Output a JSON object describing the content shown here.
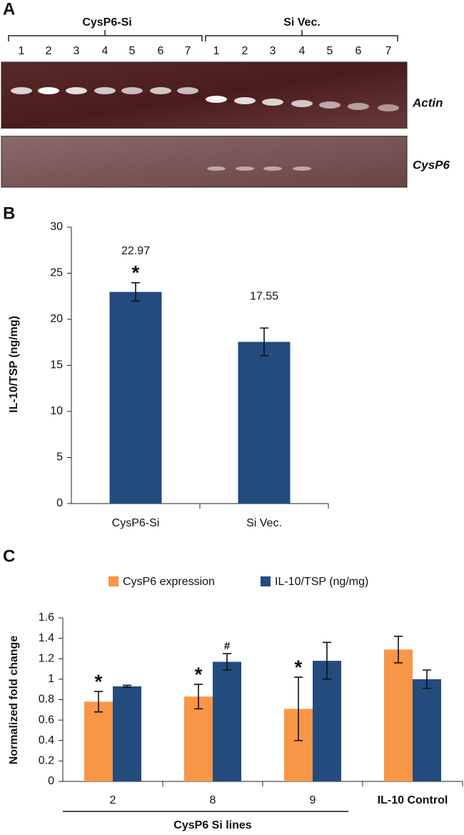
{
  "gel": {
    "panel": "A",
    "groups": [
      "CysP6-Si",
      "Si Vec."
    ],
    "lanes": [
      [
        "1",
        "2",
        "3",
        "4",
        "5",
        "6",
        "7"
      ],
      [
        "1",
        "2",
        "3",
        "4",
        "5",
        "6",
        "7"
      ]
    ],
    "genes": [
      "Actin",
      "CysP6"
    ]
  },
  "chart_data": [
    {
      "type": "bar",
      "panel": "B",
      "ylabel": "IL-10/TSP (ng/mg)",
      "categories": [
        "CysP6-Si",
        "Si Vec."
      ],
      "values": [
        22.97,
        17.55
      ],
      "errors": [
        1.0,
        1.5
      ],
      "markers": [
        "*",
        null
      ],
      "color": "#234b7e",
      "ylim": [
        0,
        30
      ],
      "yticks": [
        0,
        5,
        10,
        15,
        20,
        25,
        30
      ]
    },
    {
      "type": "grouped-bar",
      "panel": "C",
      "ylabel": "Normalized fold change",
      "xlabel": "CysP6 Si lines",
      "categories": [
        "2",
        "8",
        "9",
        "IL-10 Control"
      ],
      "legend": "top",
      "ylim": [
        0,
        1.6
      ],
      "yticks": [
        0,
        0.2,
        0.4,
        0.6,
        0.8,
        1,
        1.2,
        1.4,
        1.6
      ],
      "series": [
        {
          "name": "CysP6 expression",
          "color": "#f79646",
          "values": [
            0.78,
            0.83,
            0.71,
            1.29
          ],
          "errors": [
            0.1,
            0.12,
            0.31,
            0.13
          ],
          "markers": [
            "*",
            "*",
            "*",
            null
          ]
        },
        {
          "name": "IL-10/TSP (ng/mg)",
          "color": "#234b7e",
          "values": [
            0.93,
            1.17,
            1.18,
            1.0
          ],
          "errors": [
            0.01,
            0.08,
            0.18,
            0.09
          ],
          "markers": [
            null,
            "#",
            null,
            null
          ]
        }
      ]
    }
  ]
}
